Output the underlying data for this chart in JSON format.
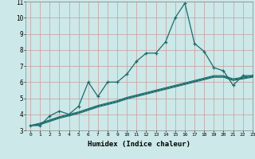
{
  "title": "",
  "xlabel": "Humidex (Indice chaleur)",
  "ylabel": "",
  "background_color": "#cce8e8",
  "grid_color": "#bbcccc",
  "line_color": "#1a6b6b",
  "x_values": [
    0,
    1,
    2,
    3,
    4,
    5,
    6,
    7,
    8,
    9,
    10,
    11,
    12,
    13,
    14,
    15,
    16,
    17,
    18,
    19,
    20,
    21,
    22,
    23
  ],
  "y_main": [
    3.3,
    3.3,
    3.9,
    4.2,
    4.0,
    4.5,
    6.0,
    5.1,
    6.0,
    6.0,
    6.5,
    7.3,
    7.8,
    7.8,
    8.5,
    10.0,
    10.9,
    8.4,
    7.9,
    6.9,
    6.7,
    5.8,
    6.4,
    6.4
  ],
  "y_trend1": [
    3.3,
    3.35,
    3.55,
    3.75,
    3.9,
    4.05,
    4.25,
    4.45,
    4.6,
    4.75,
    4.95,
    5.1,
    5.25,
    5.4,
    5.55,
    5.7,
    5.85,
    6.0,
    6.15,
    6.3,
    6.3,
    6.1,
    6.2,
    6.3
  ],
  "y_trend2": [
    3.3,
    3.4,
    3.6,
    3.8,
    3.95,
    4.1,
    4.3,
    4.5,
    4.65,
    4.8,
    5.0,
    5.15,
    5.3,
    5.45,
    5.6,
    5.75,
    5.9,
    6.05,
    6.2,
    6.35,
    6.35,
    6.15,
    6.25,
    6.35
  ],
  "y_trend3": [
    3.3,
    3.45,
    3.65,
    3.85,
    4.0,
    4.15,
    4.35,
    4.55,
    4.7,
    4.85,
    5.05,
    5.2,
    5.35,
    5.5,
    5.65,
    5.8,
    5.95,
    6.1,
    6.25,
    6.4,
    6.4,
    6.2,
    6.3,
    6.4
  ],
  "ylim": [
    3,
    11
  ],
  "xlim": [
    -0.5,
    23
  ],
  "yticks": [
    3,
    4,
    5,
    6,
    7,
    8,
    9,
    10,
    11
  ],
  "xticks": [
    0,
    1,
    2,
    3,
    4,
    5,
    6,
    7,
    8,
    9,
    10,
    11,
    12,
    13,
    14,
    15,
    16,
    17,
    18,
    19,
    20,
    21,
    22,
    23
  ]
}
